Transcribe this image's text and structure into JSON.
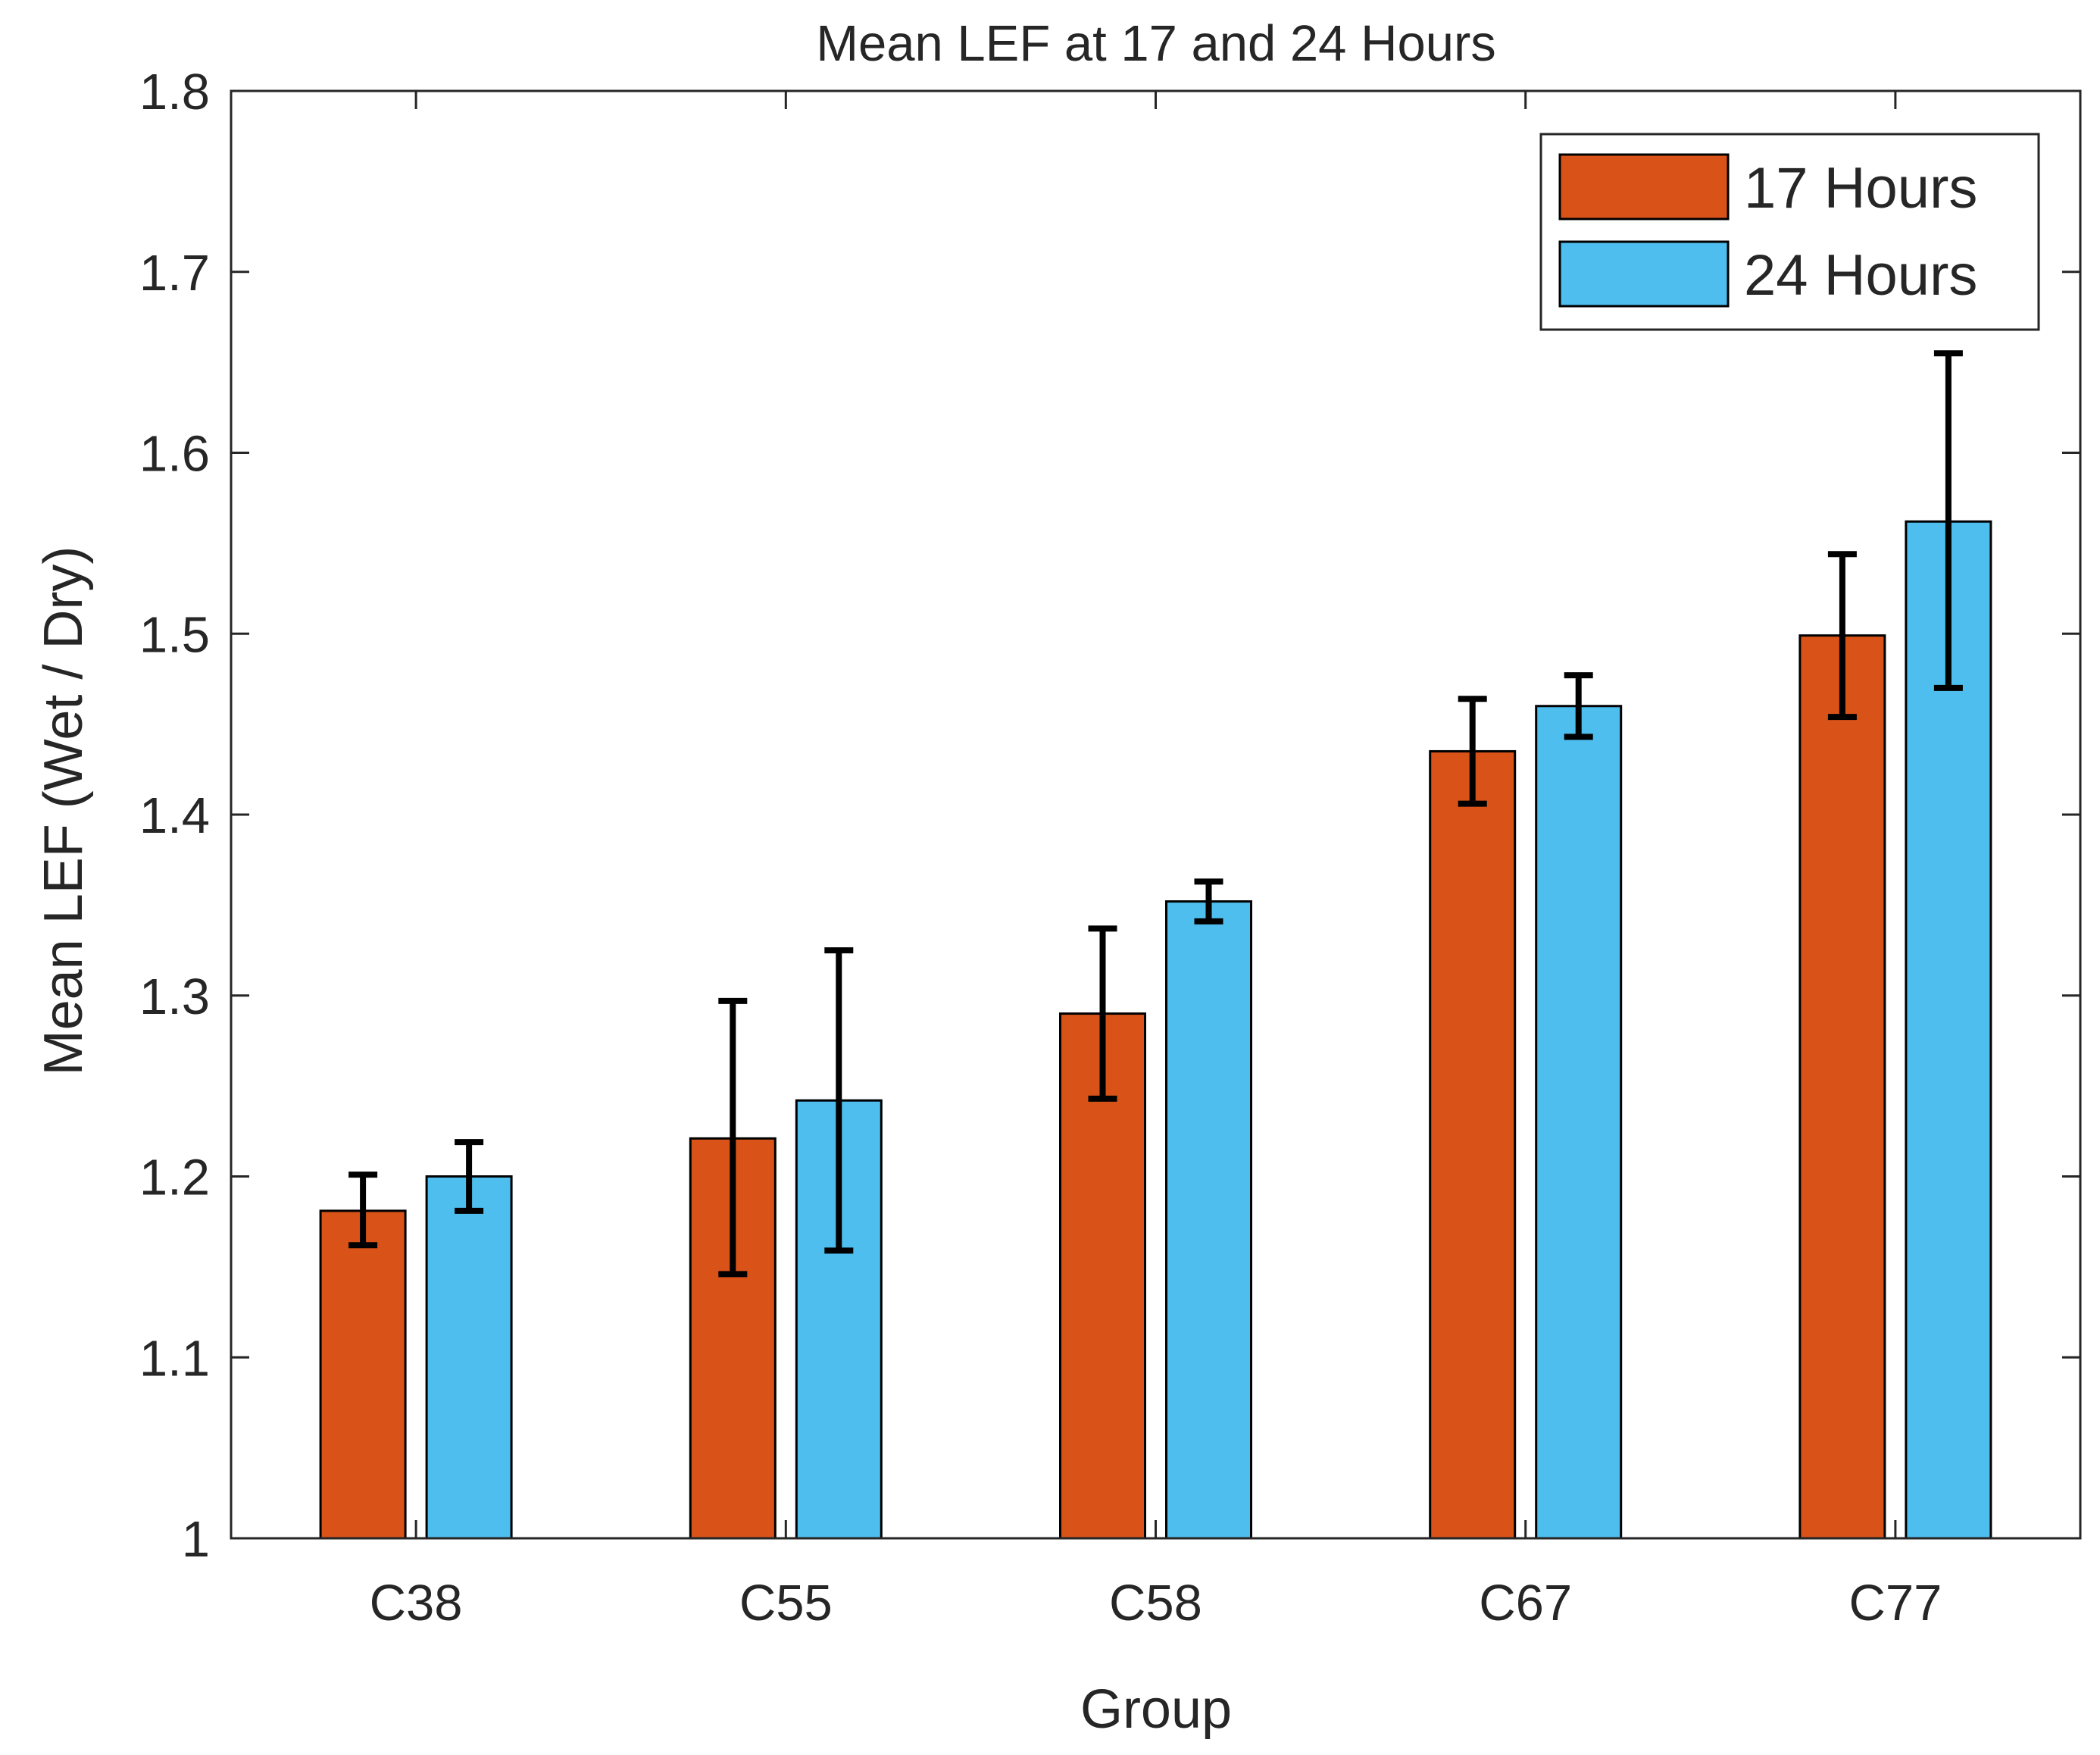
{
  "chart_data": {
    "type": "bar",
    "title": "Mean LEF at 17 and 24 Hours",
    "xlabel": "Group",
    "ylabel": "Mean LEF (Wet / Dry)",
    "categories": [
      "C38",
      "C55",
      "C58",
      "C67",
      "C77"
    ],
    "ylim": [
      1,
      1.8
    ],
    "yticks": [
      1,
      1.1,
      1.2,
      1.3,
      1.4,
      1.5,
      1.6,
      1.7,
      1.8
    ],
    "ytick_labels": [
      "1",
      "1.1",
      "1.2",
      "1.3",
      "1.4",
      "1.5",
      "1.6",
      "1.7",
      "1.8"
    ],
    "grid": false,
    "legend_position": "top-right",
    "series": [
      {
        "name": "17 Hours",
        "color": "#D95319",
        "values": [
          1.181,
          1.221,
          1.29,
          1.435,
          1.499
        ],
        "error_low": [
          1.162,
          1.146,
          1.243,
          1.406,
          1.454
        ],
        "error_high": [
          1.201,
          1.297,
          1.337,
          1.464,
          1.544
        ]
      },
      {
        "name": "24 Hours",
        "color": "#4DBEEE",
        "values": [
          1.2,
          1.242,
          1.352,
          1.46,
          1.562
        ],
        "error_low": [
          1.181,
          1.159,
          1.341,
          1.443,
          1.47
        ],
        "error_high": [
          1.219,
          1.325,
          1.363,
          1.477,
          1.655
        ]
      }
    ]
  }
}
